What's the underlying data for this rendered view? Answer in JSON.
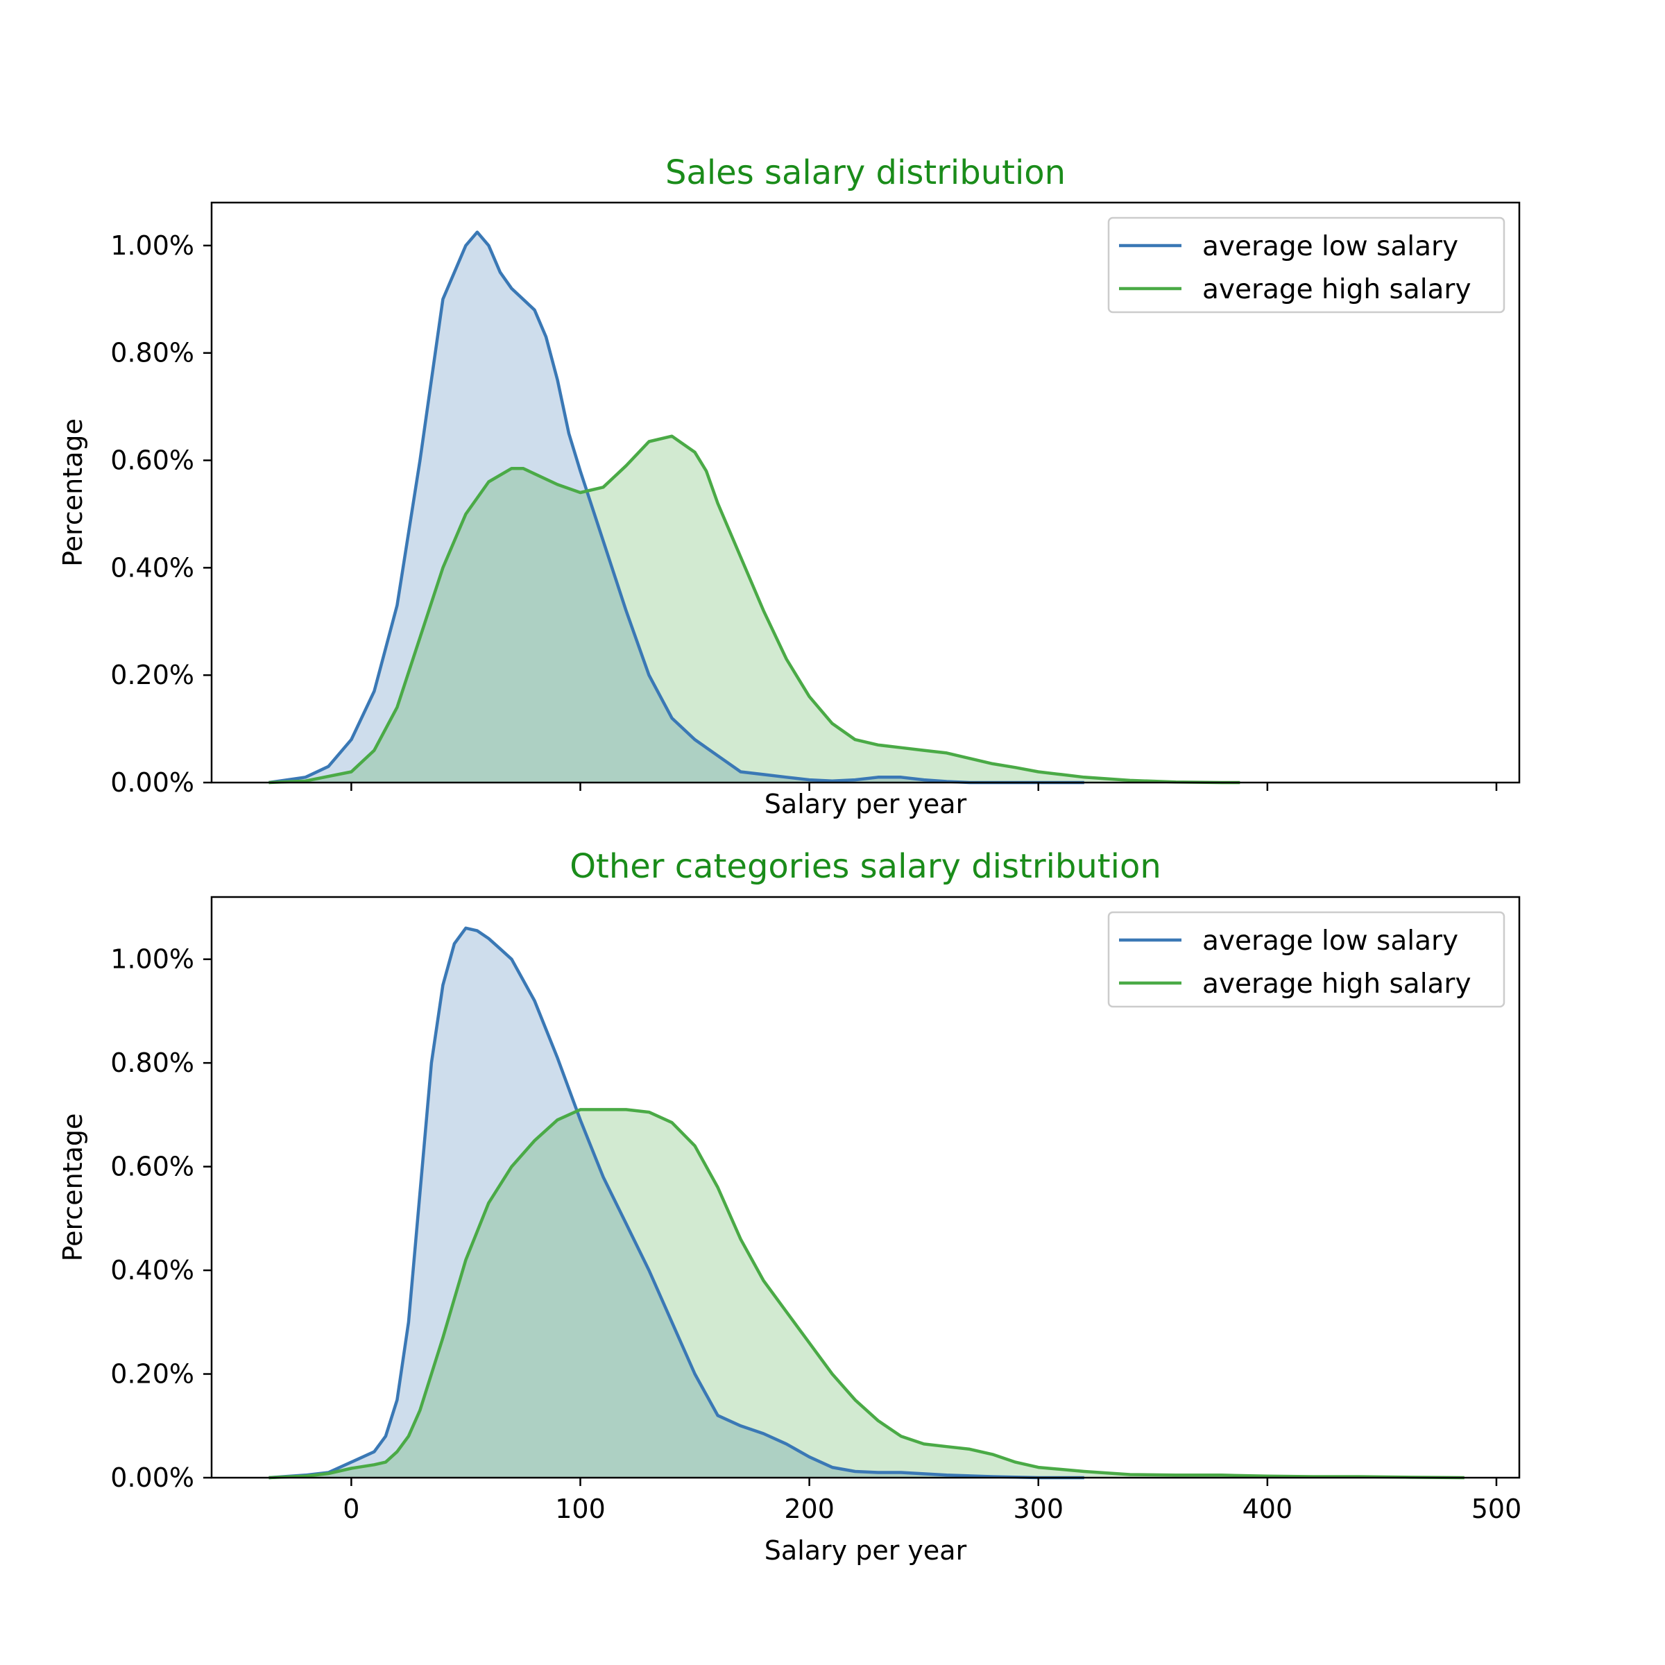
{
  "colors": {
    "low": "#3a78b5",
    "high": "#4aaa46",
    "title": "#1a8c1a"
  },
  "chart_data": [
    {
      "type": "area",
      "title": "Sales salary distribution",
      "xlabel": "Salary per year",
      "ylabel": "Percentage",
      "xlim": [
        -61,
        510
      ],
      "ylim": [
        0,
        1.08
      ],
      "xticks": [
        0,
        100,
        200,
        300,
        400,
        500
      ],
      "xtick_labels_visible": false,
      "yticks": [
        0,
        0.2,
        0.4,
        0.6,
        0.8,
        1.0
      ],
      "ytick_labels": [
        "0.00%",
        "0.20%",
        "0.40%",
        "0.60%",
        "0.80%",
        "1.00%"
      ],
      "legend": "top-right",
      "series": [
        {
          "name": "average low salary",
          "color_key": "low",
          "x": [
            -36,
            -20,
            -10,
            0,
            10,
            20,
            30,
            40,
            50,
            55,
            60,
            65,
            70,
            75,
            80,
            85,
            90,
            95,
            100,
            110,
            120,
            130,
            140,
            150,
            160,
            170,
            180,
            190,
            200,
            210,
            220,
            230,
            240,
            250,
            260,
            270,
            280,
            290,
            300,
            310,
            320
          ],
          "y": [
            0.0,
            0.01,
            0.03,
            0.08,
            0.17,
            0.33,
            0.6,
            0.9,
            1.0,
            1.025,
            1.0,
            0.95,
            0.92,
            0.9,
            0.88,
            0.83,
            0.75,
            0.65,
            0.58,
            0.45,
            0.32,
            0.2,
            0.12,
            0.08,
            0.05,
            0.02,
            0.015,
            0.01,
            0.005,
            0.003,
            0.005,
            0.01,
            0.01,
            0.005,
            0.002,
            0.0,
            0.0,
            0.0,
            0.0,
            0.0,
            0.0
          ]
        },
        {
          "name": "average high salary",
          "color_key": "high",
          "x": [
            -36,
            -20,
            0,
            10,
            20,
            30,
            40,
            50,
            60,
            70,
            75,
            80,
            90,
            100,
            110,
            120,
            130,
            140,
            150,
            155,
            160,
            170,
            180,
            190,
            200,
            210,
            220,
            230,
            240,
            250,
            260,
            270,
            280,
            290,
            300,
            310,
            320,
            340,
            360,
            380,
            388
          ],
          "y": [
            0.0,
            0.003,
            0.02,
            0.06,
            0.14,
            0.27,
            0.4,
            0.5,
            0.56,
            0.585,
            0.585,
            0.575,
            0.555,
            0.54,
            0.55,
            0.59,
            0.635,
            0.645,
            0.615,
            0.58,
            0.52,
            0.42,
            0.32,
            0.23,
            0.16,
            0.11,
            0.08,
            0.07,
            0.065,
            0.06,
            0.055,
            0.045,
            0.035,
            0.028,
            0.02,
            0.015,
            0.01,
            0.004,
            0.001,
            0.0,
            0.0
          ]
        }
      ]
    },
    {
      "type": "area",
      "title": "Other categories salary distribution",
      "xlabel": "Salary per year",
      "ylabel": "Percentage",
      "xlim": [
        -61,
        510
      ],
      "ylim": [
        0,
        1.12
      ],
      "xticks": [
        0,
        100,
        200,
        300,
        400,
        500
      ],
      "xtick_labels": [
        "0",
        "100",
        "200",
        "300",
        "400",
        "500"
      ],
      "xtick_labels_visible": true,
      "yticks": [
        0,
        0.2,
        0.4,
        0.6,
        0.8,
        1.0
      ],
      "ytick_labels": [
        "0.00%",
        "0.20%",
        "0.40%",
        "0.60%",
        "0.80%",
        "1.00%"
      ],
      "legend": "top-right",
      "series": [
        {
          "name": "average low salary",
          "color_key": "low",
          "x": [
            -36,
            -20,
            -10,
            0,
            10,
            15,
            20,
            25,
            30,
            35,
            40,
            45,
            50,
            55,
            60,
            65,
            70,
            80,
            90,
            100,
            110,
            120,
            130,
            140,
            150,
            160,
            170,
            180,
            190,
            200,
            210,
            220,
            230,
            240,
            260,
            280,
            300,
            320
          ],
          "y": [
            0.0,
            0.005,
            0.01,
            0.03,
            0.05,
            0.08,
            0.15,
            0.3,
            0.55,
            0.8,
            0.95,
            1.03,
            1.06,
            1.055,
            1.04,
            1.02,
            1.0,
            0.92,
            0.81,
            0.69,
            0.58,
            0.49,
            0.4,
            0.3,
            0.2,
            0.12,
            0.1,
            0.085,
            0.065,
            0.04,
            0.02,
            0.012,
            0.01,
            0.01,
            0.005,
            0.002,
            0.0,
            0.0
          ]
        },
        {
          "name": "average high salary",
          "color_key": "high",
          "x": [
            -36,
            -20,
            -10,
            0,
            10,
            15,
            20,
            25,
            30,
            40,
            50,
            60,
            70,
            80,
            90,
            100,
            110,
            120,
            130,
            140,
            150,
            160,
            170,
            180,
            190,
            200,
            210,
            220,
            230,
            240,
            250,
            260,
            270,
            280,
            290,
            300,
            320,
            340,
            360,
            380,
            400,
            420,
            440,
            460,
            486
          ],
          "y": [
            0.0,
            0.003,
            0.008,
            0.018,
            0.025,
            0.03,
            0.05,
            0.08,
            0.13,
            0.27,
            0.42,
            0.53,
            0.6,
            0.65,
            0.69,
            0.71,
            0.71,
            0.71,
            0.705,
            0.685,
            0.64,
            0.56,
            0.46,
            0.38,
            0.32,
            0.26,
            0.2,
            0.15,
            0.11,
            0.08,
            0.065,
            0.06,
            0.055,
            0.045,
            0.03,
            0.02,
            0.012,
            0.006,
            0.005,
            0.005,
            0.003,
            0.002,
            0.002,
            0.001,
            0.0
          ]
        }
      ]
    }
  ]
}
